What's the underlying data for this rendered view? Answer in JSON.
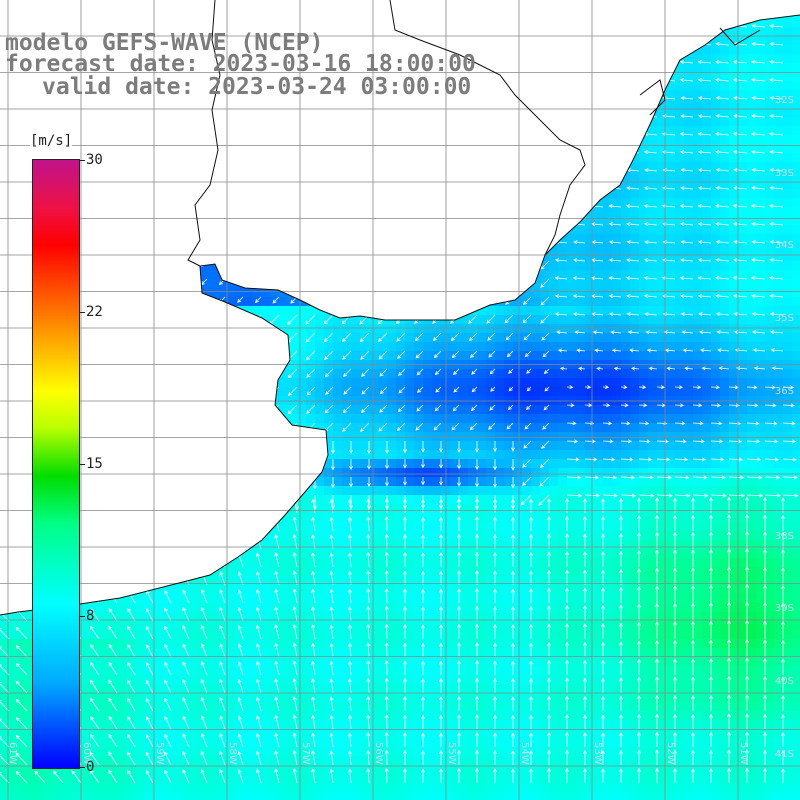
{
  "title": {
    "line1": "modelo GEFS-WAVE (NCEP)",
    "line2": "forecast date: 2023-03-16 18:00:00",
    "line3": "valid date: 2023-03-24 03:00:00"
  },
  "colorbar": {
    "unit": "[m/s]",
    "ticks": [
      "30",
      "22",
      "15",
      "8",
      "0"
    ],
    "range": [
      0,
      30
    ],
    "colors": [
      "#0000ff",
      "#00aaff",
      "#00ffff",
      "#00ff88",
      "#00dd00",
      "#bbff00",
      "#ffff00",
      "#ffaa00",
      "#ff4000",
      "#ff0000",
      "#c0138a"
    ]
  },
  "map": {
    "variable": "wind speed and direction",
    "land_color": "#ffffff",
    "grid": true,
    "lat_labels": [
      "32S",
      "33S",
      "34S",
      "35S",
      "36S",
      "38S",
      "39S",
      "40S",
      "41S"
    ],
    "lon_labels": [
      "61W",
      "60W",
      "59W",
      "58W",
      "57W",
      "56W",
      "55W",
      "54W",
      "53W",
      "52W",
      "51W"
    ],
    "regions": [
      {
        "name": "open-ocean-south",
        "speed": "8-11"
      },
      {
        "name": "estuary-calm-zone",
        "speed": "1-4"
      },
      {
        "name": "southeast-strong-zone",
        "speed": "10-12"
      }
    ]
  }
}
